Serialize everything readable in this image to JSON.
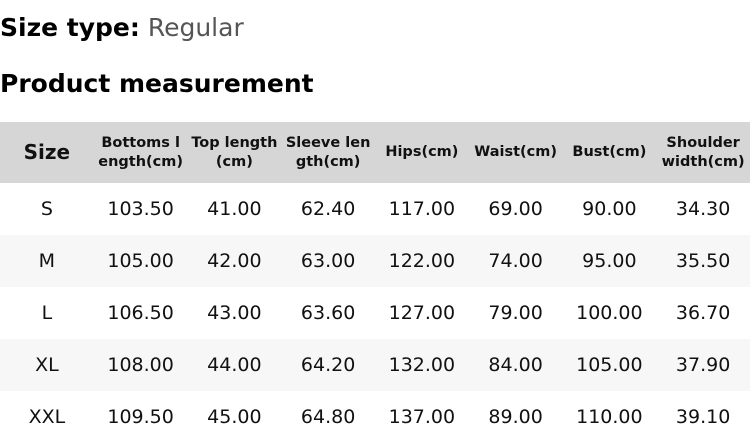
{
  "size_type": {
    "label": "Size type:",
    "value": "Regular"
  },
  "section_title": "Product measurement",
  "table": {
    "headers": [
      "Size",
      "Bottoms length(cm)",
      "Top length(cm)",
      "Sleeve length(cm)",
      "Hips(cm)",
      "Waist(cm)",
      "Bust(cm)",
      "Shoulder width(cm)"
    ],
    "rows": [
      [
        "S",
        "103.50",
        "41.00",
        "62.40",
        "117.00",
        "69.00",
        "90.00",
        "34.30"
      ],
      [
        "M",
        "105.00",
        "42.00",
        "63.00",
        "122.00",
        "74.00",
        "95.00",
        "35.50"
      ],
      [
        "L",
        "106.50",
        "43.00",
        "63.60",
        "127.00",
        "79.00",
        "100.00",
        "36.70"
      ],
      [
        "XL",
        "108.00",
        "44.00",
        "64.20",
        "132.00",
        "84.00",
        "105.00",
        "37.90"
      ],
      [
        "XXL",
        "109.50",
        "45.00",
        "64.80",
        "137.00",
        "89.00",
        "110.00",
        "39.10"
      ]
    ]
  }
}
